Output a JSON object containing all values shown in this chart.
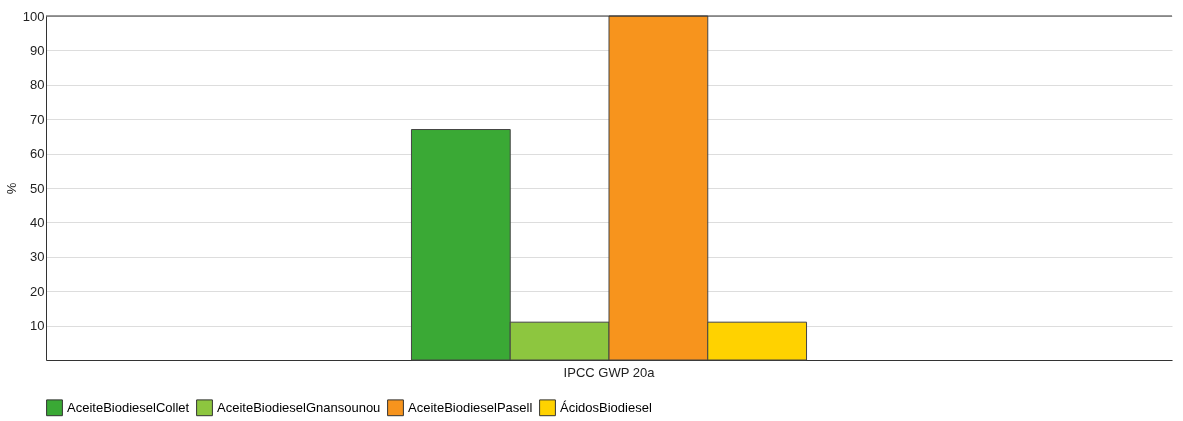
{
  "chart_data": {
    "type": "bar",
    "ylabel": "%",
    "categories": [
      "IPCC GWP 20a"
    ],
    "series": [
      {
        "name": "AceiteBiodieselCollet",
        "color": "#3aa935",
        "values": [
          67
        ]
      },
      {
        "name": "AceiteBiodieselGnansounou",
        "color": "#8dc63f",
        "values": [
          11
        ]
      },
      {
        "name": "AceiteBiodieselPasell",
        "color": "#f7941d",
        "values": [
          100
        ]
      },
      {
        "name": "ÁcidosBiodiesel",
        "color": "#ffd200",
        "values": [
          11
        ]
      }
    ],
    "ylim": [
      0,
      100
    ],
    "yticks": [
      {
        "value": 0,
        "label": null
      },
      10,
      20,
      30,
      40,
      50,
      60,
      70,
      80,
      90,
      100
    ],
    "grid": "y",
    "legend": "bottom"
  }
}
